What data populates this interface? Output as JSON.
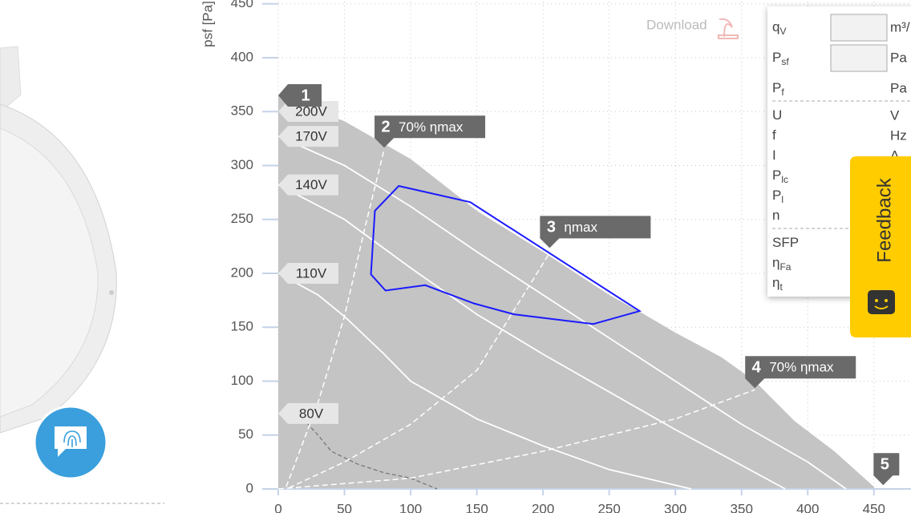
{
  "chart_data": {
    "type": "line",
    "ylabel": "psf [Pa]",
    "xlim": [
      0,
      478
    ],
    "ylim": [
      0,
      452
    ],
    "xticks": [
      0,
      50,
      100,
      150,
      200,
      250,
      300,
      350,
      400,
      450
    ],
    "yticks": [
      0,
      50,
      100,
      150,
      200,
      250,
      300,
      350,
      400,
      450
    ],
    "grid": true,
    "area_color": "#c4c4c4",
    "series": [
      {
        "name": "200V",
        "style": "area",
        "color": "#ffffff",
        "x": [
          0,
          50,
          100,
          150,
          200,
          250,
          275,
          300,
          335,
          360,
          390,
          420,
          450
        ],
        "values": [
          365,
          341,
          306,
          258,
          220,
          180,
          163,
          145,
          122,
          100,
          63,
          35,
          2
        ]
      },
      {
        "name": "170V",
        "style": "line",
        "color": "#ffffff",
        "x": [
          0,
          50,
          100,
          150,
          200,
          250,
          300,
          350,
          400,
          429
        ],
        "values": [
          327,
          300,
          262,
          220,
          180,
          140,
          100,
          60,
          25,
          0
        ]
      },
      {
        "name": "140V",
        "style": "line",
        "color": "#ffffff",
        "x": [
          0,
          50,
          100,
          150,
          200,
          250,
          300,
          350,
          383
        ],
        "values": [
          282,
          250,
          205,
          162,
          125,
          90,
          55,
          22,
          0
        ]
      },
      {
        "name": "110V",
        "style": "line",
        "color": "#ffffff",
        "x": [
          0,
          30,
          50,
          80,
          100,
          150,
          200,
          250,
          312
        ],
        "values": [
          200,
          180,
          160,
          125,
          100,
          65,
          40,
          18,
          0
        ]
      },
      {
        "name": "80V",
        "style": "dashed",
        "color": "#777777",
        "x": [
          15,
          30,
          40,
          60,
          80,
          100,
          120
        ],
        "values": [
          70,
          50,
          35,
          23,
          15,
          10,
          0
        ]
      }
    ],
    "efficiency_lines": [
      {
        "x": [
          6,
          30,
          50,
          65,
          80
        ],
        "values": [
          2,
          80,
          160,
          240,
          315
        ]
      },
      {
        "x": [
          8,
          50,
          100,
          150,
          207
        ],
        "values": [
          1,
          25,
          60,
          110,
          223
        ]
      },
      {
        "x": [
          0,
          100,
          200,
          300,
          360
        ],
        "values": [
          0,
          10,
          35,
          65,
          92
        ]
      }
    ],
    "operating_range": {
      "color": "#1a1aff",
      "x": [
        73,
        91,
        145,
        273,
        238,
        178,
        148,
        111,
        81,
        70
      ],
      "values": [
        258,
        281,
        266,
        165,
        153,
        162,
        172,
        189,
        184,
        199
      ]
    },
    "markers": [
      {
        "label": "1",
        "x": 0,
        "y": 365,
        "pointer": "left"
      },
      {
        "label": "2",
        "text": "70% ηmax",
        "x": 80,
        "y": 315,
        "pointer": "down"
      },
      {
        "label": "3",
        "text": "ηmax",
        "x": 205,
        "y": 222,
        "pointer": "down"
      },
      {
        "label": "4",
        "text": "70% ηmax",
        "x": 360,
        "y": 92,
        "pointer": "down"
      },
      {
        "label": "5",
        "x": 457,
        "y": 2,
        "pointer": "down"
      }
    ]
  },
  "download": "Download",
  "panel": {
    "rows": [
      {
        "symbol": "q",
        "sub": "V",
        "unit": "m³/",
        "input": true
      },
      {
        "symbol": "P",
        "sub": "sf",
        "unit": "Pa",
        "input": true
      },
      {
        "symbol": "P",
        "sub": "f",
        "unit": "Pa",
        "sep": true
      },
      {
        "symbol": "U",
        "unit": "V"
      },
      {
        "symbol": "f",
        "unit": "Hz"
      },
      {
        "symbol": "I",
        "unit": "A"
      },
      {
        "symbol": "P",
        "sub": "lc"
      },
      {
        "symbol": "P",
        "sub": "l"
      },
      {
        "symbol": "n",
        "sep": true
      },
      {
        "symbol": "SFP"
      },
      {
        "symbol": "η",
        "sub": "Fa"
      },
      {
        "symbol": "η",
        "sub": "t"
      }
    ]
  },
  "feedback": "Feedback"
}
